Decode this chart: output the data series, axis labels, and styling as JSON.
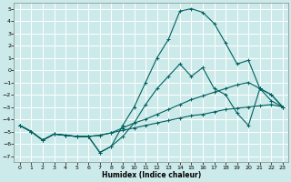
{
  "xlabel": "Humidex (Indice chaleur)",
  "bg_color": "#cceaea",
  "grid_color": "#b8d8d8",
  "line_color": "#006060",
  "xlim": [
    -0.5,
    23.5
  ],
  "ylim": [
    -7.5,
    5.5
  ],
  "xticks": [
    0,
    1,
    2,
    3,
    4,
    5,
    6,
    7,
    8,
    9,
    10,
    11,
    12,
    13,
    14,
    15,
    16,
    17,
    18,
    19,
    20,
    21,
    22,
    23
  ],
  "yticks": [
    -7,
    -6,
    -5,
    -4,
    -3,
    -2,
    -1,
    0,
    1,
    2,
    3,
    4,
    5
  ],
  "series": [
    {
      "x": [
        0,
        1,
        2,
        3,
        4,
        5,
        6,
        7,
        8,
        9,
        10,
        11,
        12,
        13,
        14,
        15,
        16,
        17,
        18,
        19,
        20,
        21,
        22,
        23
      ],
      "y": [
        -4.5,
        -5.0,
        -5.7,
        -5.2,
        -5.3,
        -5.4,
        -5.4,
        -5.3,
        -5.1,
        -4.9,
        -4.7,
        -4.5,
        -4.3,
        -4.1,
        -3.9,
        -3.7,
        -3.6,
        -3.4,
        -3.2,
        -3.1,
        -3.0,
        -2.9,
        -2.8,
        -3.0
      ]
    },
    {
      "x": [
        0,
        1,
        2,
        3,
        4,
        5,
        6,
        7,
        8,
        9,
        10,
        11,
        12,
        13,
        14,
        15,
        16,
        17,
        18,
        19,
        20,
        21,
        22,
        23
      ],
      "y": [
        -4.5,
        -5.0,
        -5.7,
        -5.2,
        -5.3,
        -5.4,
        -5.4,
        -5.3,
        -5.1,
        -4.7,
        -4.3,
        -4.0,
        -3.6,
        -3.2,
        -2.8,
        -2.4,
        -2.1,
        -1.8,
        -1.5,
        -1.2,
        -1.0,
        -1.5,
        -2.0,
        -3.0
      ]
    },
    {
      "x": [
        0,
        1,
        2,
        3,
        4,
        5,
        6,
        7,
        8,
        9,
        10,
        11,
        12,
        13,
        14,
        15,
        16,
        17,
        18,
        19,
        20,
        21,
        22,
        23
      ],
      "y": [
        -4.5,
        -5.0,
        -5.7,
        -5.2,
        -5.3,
        -5.4,
        -5.4,
        -6.7,
        -6.2,
        -5.4,
        -4.3,
        -2.8,
        -1.5,
        -0.5,
        0.5,
        -0.5,
        0.2,
        -1.5,
        -2.0,
        -3.5,
        -4.5,
        -1.5,
        -2.0,
        -3.0
      ]
    },
    {
      "x": [
        0,
        1,
        2,
        3,
        4,
        5,
        6,
        7,
        8,
        9,
        10,
        11,
        12,
        13,
        14,
        15,
        16,
        17,
        18,
        19,
        20,
        21,
        22,
        23
      ],
      "y": [
        -4.5,
        -5.0,
        -5.7,
        -5.2,
        -5.3,
        -5.4,
        -5.4,
        -6.7,
        -6.2,
        -4.5,
        -3.0,
        -1.0,
        1.0,
        2.5,
        4.8,
        5.0,
        4.7,
        3.8,
        2.2,
        0.5,
        0.8,
        -1.5,
        -2.5,
        -3.0
      ]
    }
  ]
}
